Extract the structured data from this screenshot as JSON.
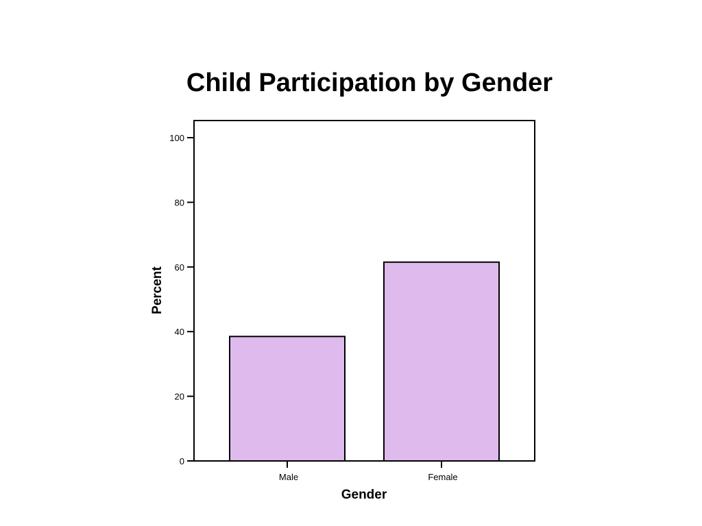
{
  "chart_data": {
    "type": "bar",
    "title": "Child Participation by Gender",
    "xlabel": "Gender",
    "ylabel": "Percent",
    "categories": [
      "Male",
      "Female"
    ],
    "values": [
      38.5,
      61.5
    ],
    "ylim": [
      0,
      105
    ],
    "yticks": [
      0,
      20,
      40,
      60,
      80,
      100
    ],
    "grid": false,
    "legend": "none",
    "bar_color": "#dfbaed",
    "bar_edge_color": "#000000"
  }
}
